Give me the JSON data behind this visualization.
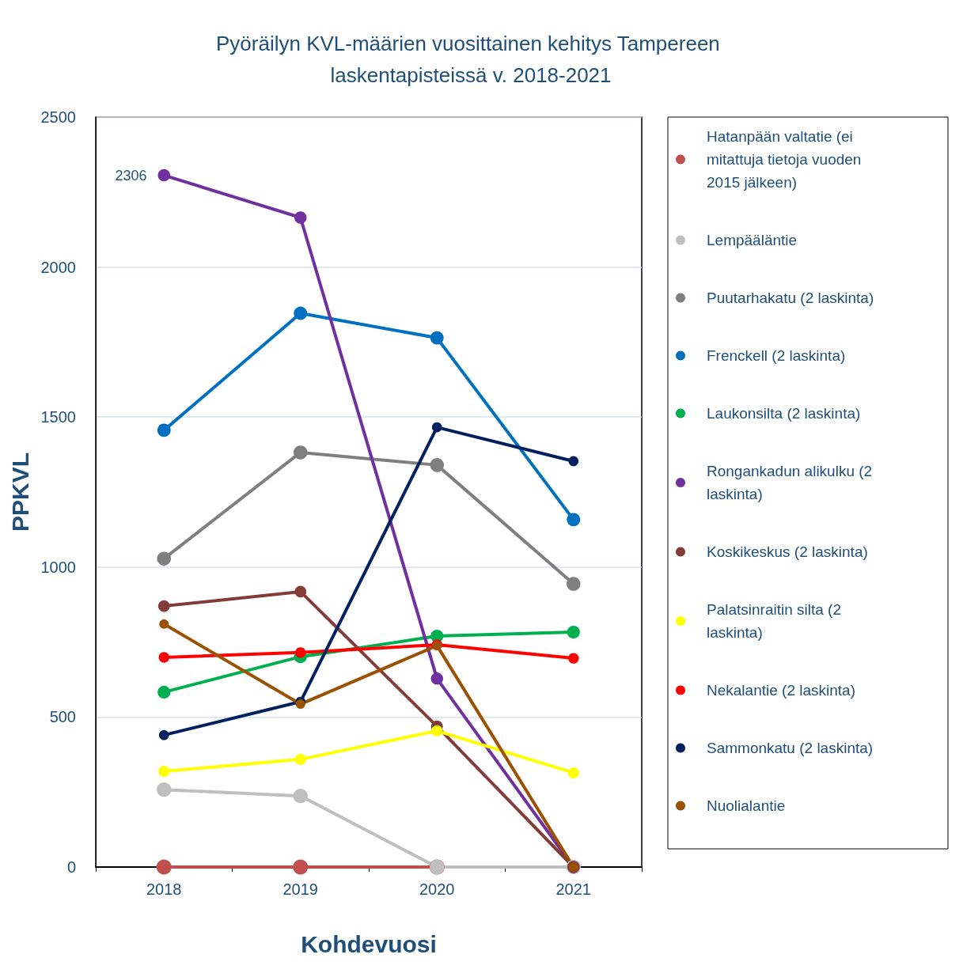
{
  "chart_data": {
    "type": "line",
    "title": "Pyöräilyn KVL-määrien vuosittainen kehitys Tampereen laskentapisteissä v. 2018-2021",
    "xlabel": "Kohdevuosi",
    "ylabel": "PPKVL",
    "categories": [
      "2018",
      "2019",
      "2020",
      "2021"
    ],
    "ylim": [
      0,
      2500
    ],
    "yticks": [
      0,
      500,
      1000,
      1500,
      2000,
      2500
    ],
    "grid": "y",
    "legend": "right",
    "marker": "circle",
    "line_style": "solid",
    "series": [
      {
        "name": "Hatanpään valtatie (ei mitattuja tietoja vuoden 2015 jälkeen)",
        "color": "#c0504d",
        "values": [
          0,
          0,
          0,
          null
        ]
      },
      {
        "name": "Lempääläntie",
        "color": "#bfbfbf",
        "values": [
          258,
          237,
          0,
          0
        ]
      },
      {
        "name": "Puutarhakatu (2 laskinta)",
        "color": "#7f7f7f",
        "values": [
          1028,
          1382,
          1340,
          944
        ]
      },
      {
        "name": "Frenckell (2 laskinta)",
        "color": "#0070c0",
        "values": [
          1456,
          1846,
          1764,
          1158
        ]
      },
      {
        "name": "Laukonsilta (2 laskinta)",
        "color": "#00b050",
        "values": [
          583,
          701,
          770,
          783
        ]
      },
      {
        "name": "Rongankadun alikulku (2 laskinta)",
        "color": "#7030a0",
        "values": [
          2306,
          2165,
          628,
          0
        ],
        "value_labels": [
          "2306",
          null,
          null,
          null
        ]
      },
      {
        "name": "Koskikeskus (2 laskinta)",
        "color": "#843c39",
        "values": [
          870,
          918,
          469,
          0
        ]
      },
      {
        "name": "Palatsinraitin silta (2 laskinta)",
        "color": "#ffff00",
        "values": [
          319,
          359,
          454,
          314
        ]
      },
      {
        "name": "Nekalantie (2 laskinta)",
        "color": "#ff0000",
        "values": [
          699,
          715,
          741,
          696
        ]
      },
      {
        "name": "Sammonkatu (2 laskinta)",
        "color": "#002060",
        "values": [
          440,
          551,
          1466,
          1353
        ]
      },
      {
        "name": "Nuolialantie",
        "color": "#9c5100",
        "values": [
          810,
          543,
          738,
          0
        ]
      }
    ]
  }
}
